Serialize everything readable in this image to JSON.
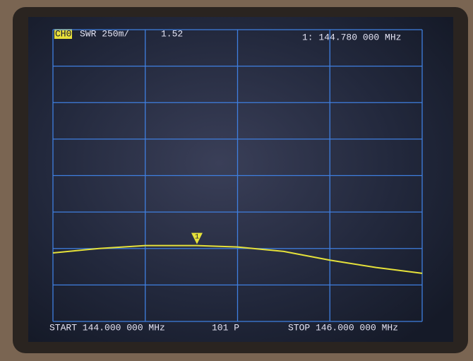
{
  "chart_data": {
    "type": "line",
    "channel": "CH0",
    "format_label": "SWR 250m/",
    "start_label": "START 144.000 000 MHz",
    "points_label": "101 P",
    "stop_label": "STOP 146.000 000 MHz",
    "x": [
      144,
      144.25,
      144.5,
      144.78,
      145,
      145.25,
      145.5,
      145.75,
      146
    ],
    "series": [
      {
        "color": "#e6e23a",
        "values": [
          1.47,
          1.5,
          1.52,
          1.52,
          1.51,
          1.48,
          1.42,
          1.37,
          1.33
        ]
      }
    ],
    "marker": {
      "label": "1",
      "x": 144.78,
      "value": 1.52,
      "freq_label": "1: 144.780 000 MHz"
    },
    "xlim": [
      144,
      146
    ],
    "ylim": [
      1,
      3
    ],
    "xticks": [
      144,
      144.5,
      145,
      145.5,
      146
    ],
    "yticks": [
      1,
      1.25,
      1.5,
      1.75,
      2,
      2.25,
      2.5,
      2.75,
      3
    ],
    "grid": true,
    "grid_color": "#3f7fe0"
  }
}
